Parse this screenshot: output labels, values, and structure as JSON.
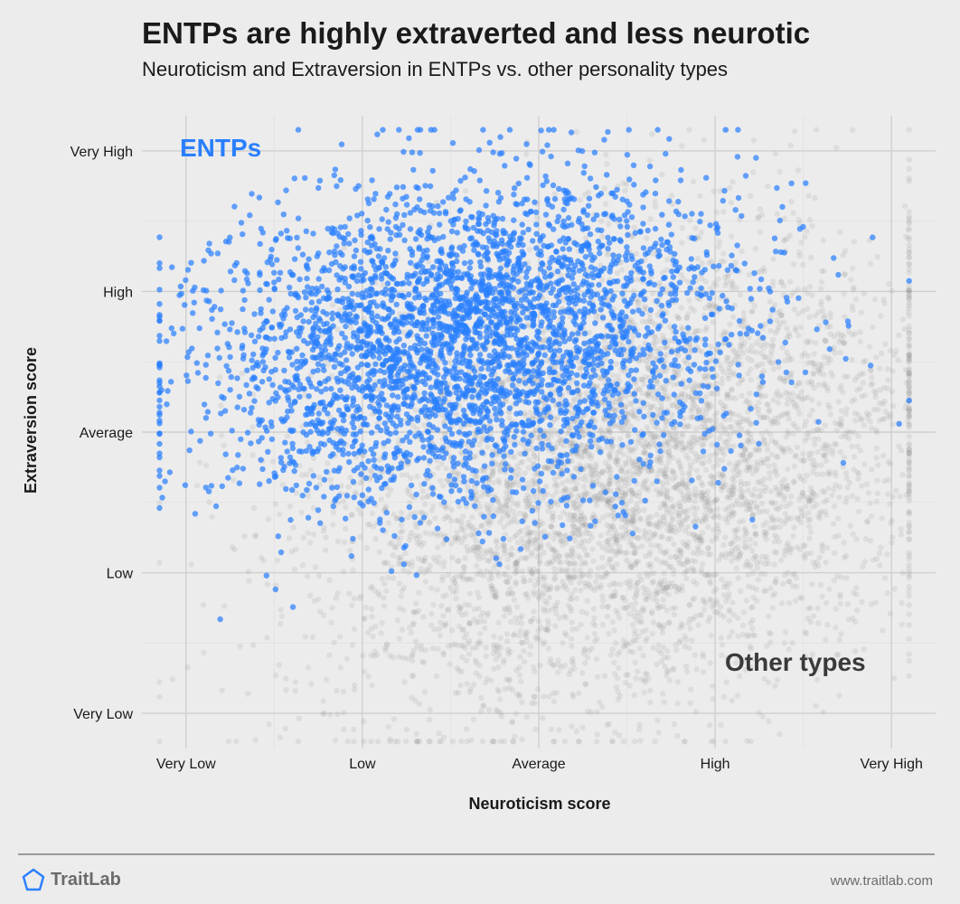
{
  "title": "ENTPs are highly extraverted and less neurotic",
  "subtitle": "Neuroticism and Extraversion in ENTPs vs. other personality types",
  "footer": {
    "brand": "TraitLab",
    "website": "www.traitlab.com"
  },
  "chart_data": {
    "type": "scatter",
    "xlabel": "Neuroticism score",
    "ylabel": "Extraversion score",
    "x_ticks": [
      "Very Low",
      "Low",
      "Average",
      "High",
      "Very High"
    ],
    "y_ticks": [
      "Very Low",
      "Low",
      "Average",
      "High",
      "Very High"
    ],
    "xlim": [
      -2.25,
      2.25
    ],
    "ylim": [
      -2.25,
      2.25
    ],
    "grid": true,
    "series": [
      {
        "name": "Other types",
        "color": "#8c8c8c",
        "opacity": 0.15,
        "center": [
          0.5,
          -0.3
        ],
        "spread": [
          0.85,
          0.8
        ],
        "n": 5200
      },
      {
        "name": "ENTPs",
        "color": "#2a7fff",
        "opacity": 0.72,
        "center": [
          -0.45,
          0.65
        ],
        "spread": [
          0.75,
          0.55
        ],
        "n": 3600
      }
    ]
  }
}
